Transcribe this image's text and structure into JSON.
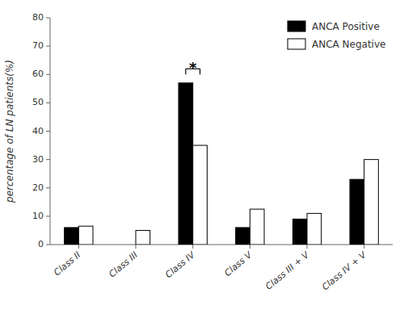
{
  "chart_data": {
    "type": "bar",
    "categories": [
      "Class II",
      "Class III",
      "Class IV",
      "Class V",
      "Class III + V",
      "Class IV + V"
    ],
    "series": [
      {
        "name": "ANCA Positive",
        "color": "#000000",
        "values": [
          6.0,
          0.0,
          57.0,
          6.0,
          9.0,
          23.0
        ]
      },
      {
        "name": "ANCA Negative",
        "color": "#ffffff",
        "values": [
          6.5,
          5.0,
          35.0,
          12.5,
          11.0,
          30.0
        ]
      }
    ],
    "ylabel": "percentage of LN patients(%)",
    "ylim": [
      0,
      80
    ],
    "yticks": [
      0,
      10,
      20,
      30,
      40,
      50,
      60,
      70,
      80
    ],
    "annotations": [
      {
        "text": "*",
        "category": "Class IV",
        "y": 63,
        "bracket_y": 60,
        "bracket_top": 62
      }
    ],
    "grid": false,
    "legend": "upper right"
  }
}
